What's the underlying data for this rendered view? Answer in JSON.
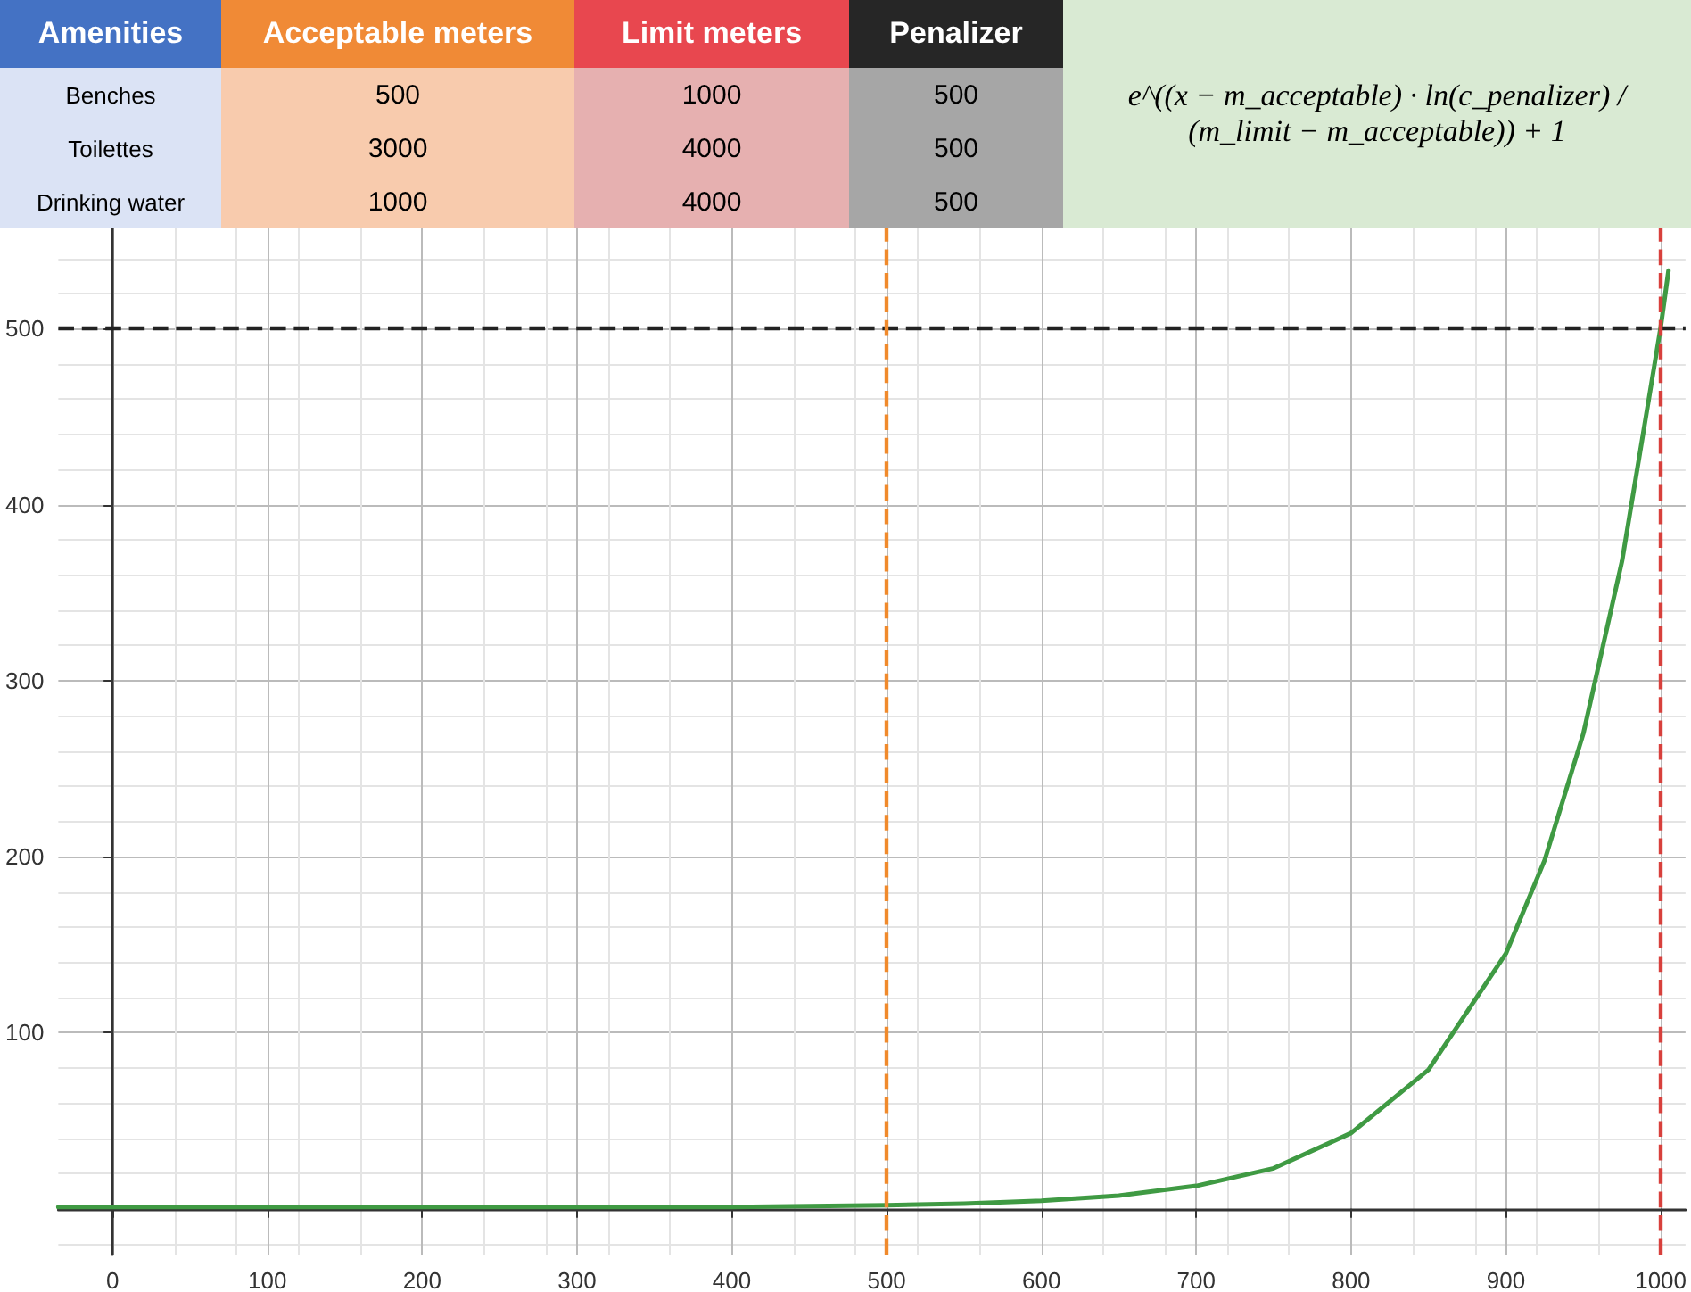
{
  "chart_data": {
    "type": "line",
    "annotations": [
      "Amenities",
      "Acceptable meters",
      "Limit meters",
      "Penalizer",
      "Benches",
      "500",
      "1000",
      "500",
      "Toilettes",
      "3000",
      "4000",
      "500",
      "Drinking water",
      "1000",
      "4000",
      "500",
      "e^((x − m_acceptable) · ln(c_penalizer) / (m_limit − m_acceptable)) + 1"
    ],
    "series": [
      {
        "color": "#3f9a43",
        "x": [
          -35,
          0,
          100,
          200,
          300,
          400,
          500,
          550,
          600,
          650,
          700,
          750,
          800,
          850,
          900,
          925,
          950,
          975,
          1000,
          1005
        ],
        "values": [
          1,
          1,
          1,
          1,
          1,
          1,
          2,
          2.9,
          4.5,
          7.5,
          13,
          23,
          43,
          79,
          145,
          198,
          270,
          368,
          501,
          533
        ]
      }
    ],
    "xlim": [
      -35,
      1016
    ],
    "ylim": [
      -26,
      557
    ],
    "xticks": [
      0,
      100,
      200,
      300,
      400,
      500,
      600,
      700,
      800,
      900,
      1000
    ],
    "yticks": [
      100,
      200,
      300,
      400,
      500
    ],
    "ref_lines": [
      {
        "axis": "y",
        "value": 500,
        "color": "#222222",
        "line_style": "dashed"
      },
      {
        "axis": "x",
        "value": 500,
        "color": "#f08a2c",
        "line_style": "dashed"
      },
      {
        "axis": "x",
        "value": 1000,
        "color": "#d8403c",
        "line_style": "dashed"
      }
    ],
    "grid": true,
    "marker": "none",
    "line_style": "solid"
  }
}
